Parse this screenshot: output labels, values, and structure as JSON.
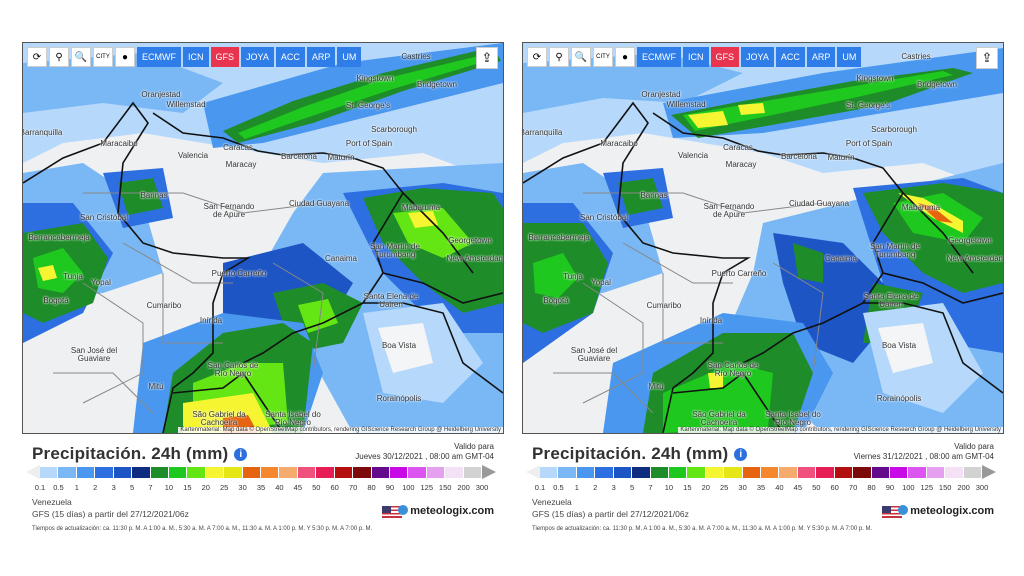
{
  "toolbar": {
    "tools": [
      {
        "icon": "refresh-icon",
        "glyph": "⟳"
      },
      {
        "icon": "location-pin-icon",
        "glyph": "⚲"
      },
      {
        "icon": "zoom-icon",
        "glyph": "🔍"
      },
      {
        "icon": "city-toggle-icon",
        "glyph": "CITY"
      },
      {
        "icon": "dot-toggle-icon",
        "glyph": "●"
      }
    ],
    "models": [
      "ECMWF",
      "ICN",
      "GFS",
      "JOYA",
      "ACC",
      "ARP",
      "UM"
    ],
    "active_model": "GFS",
    "share_icon": "share-icon"
  },
  "cities": [
    "Castries",
    "Kingstown",
    "Bridgetown",
    "Oranjestad",
    "Willemstad",
    "St. George's",
    "Scarborough",
    "Port of Spain",
    "Barranquilla",
    "Maracaibo",
    "Valencia",
    "Caracas",
    "Maracay",
    "Barcelona",
    "Maturín",
    "Barinas",
    "San Cristóbal",
    "San Fernando de Apure",
    "Ciudad Guayana",
    "Mabaruma",
    "Georgetown",
    "New Amsterdam",
    "San Martin de Turumbang",
    "Canaima",
    "Santa Elena de Uairen",
    "Boa Vista",
    "Rorainópolis",
    "Barrancabermeja",
    "Tunja",
    "Yopal",
    "Bogotá",
    "Puerto Carreño",
    "Cumaribo",
    "Inírida",
    "San José del Guaviare",
    "Mitú",
    "San Carlos de Río Negro",
    "São Gabriel da Cachoeira",
    "Santa Isabel do Rio Negro"
  ],
  "attribution": "Kartenmaterial: Map data © OpenStreetMap contributors, rendering GIScience Research Group @ Heidelberg University",
  "legend": {
    "title": "Precipitación. 24h (mm)",
    "valid_label": "Valido para",
    "region": "Venezuela",
    "model_run": "GFS (15 días) a partir del 27/12/2021/06z",
    "update_times": "Tiempos de actualización: ca. 11:30 p. M. A 1:00 a. M., 5:30 a. M. A 7:00 a. M., 11:30 a. M. A 1:00 p. M. Y 5:30 p. M. A 7:00 p. M.",
    "brand": "meteologix.com",
    "ticks": [
      "0.1",
      "0.5",
      "1",
      "2",
      "3",
      "5",
      "7",
      "10",
      "15",
      "20",
      "25",
      "30",
      "35",
      "40",
      "45",
      "50",
      "60",
      "70",
      "80",
      "90",
      "100",
      "125",
      "150",
      "200",
      "300"
    ],
    "colors": [
      "#b5d8fb",
      "#7ab8f5",
      "#4a97ef",
      "#2d6fe0",
      "#1e55c4",
      "#0f2d80",
      "#1e8c28",
      "#1ec81e",
      "#64e614",
      "#f5f532",
      "#e6e614",
      "#e6640f",
      "#f5872d",
      "#f5aa6e",
      "#f0507d",
      "#e61e55",
      "#b40f0f",
      "#7d0a0a",
      "#640a8c",
      "#c80ae6",
      "#dc55f0",
      "#e6a0f0",
      "#f5e1f5",
      "#d2d2d2"
    ]
  },
  "panels": [
    {
      "valid_time": "Jueves 30/12/2021 , 08:00 am GMT-04"
    },
    {
      "valid_time": "Viernes 31/12/2021 , 08:00 am GMT-04"
    }
  ]
}
